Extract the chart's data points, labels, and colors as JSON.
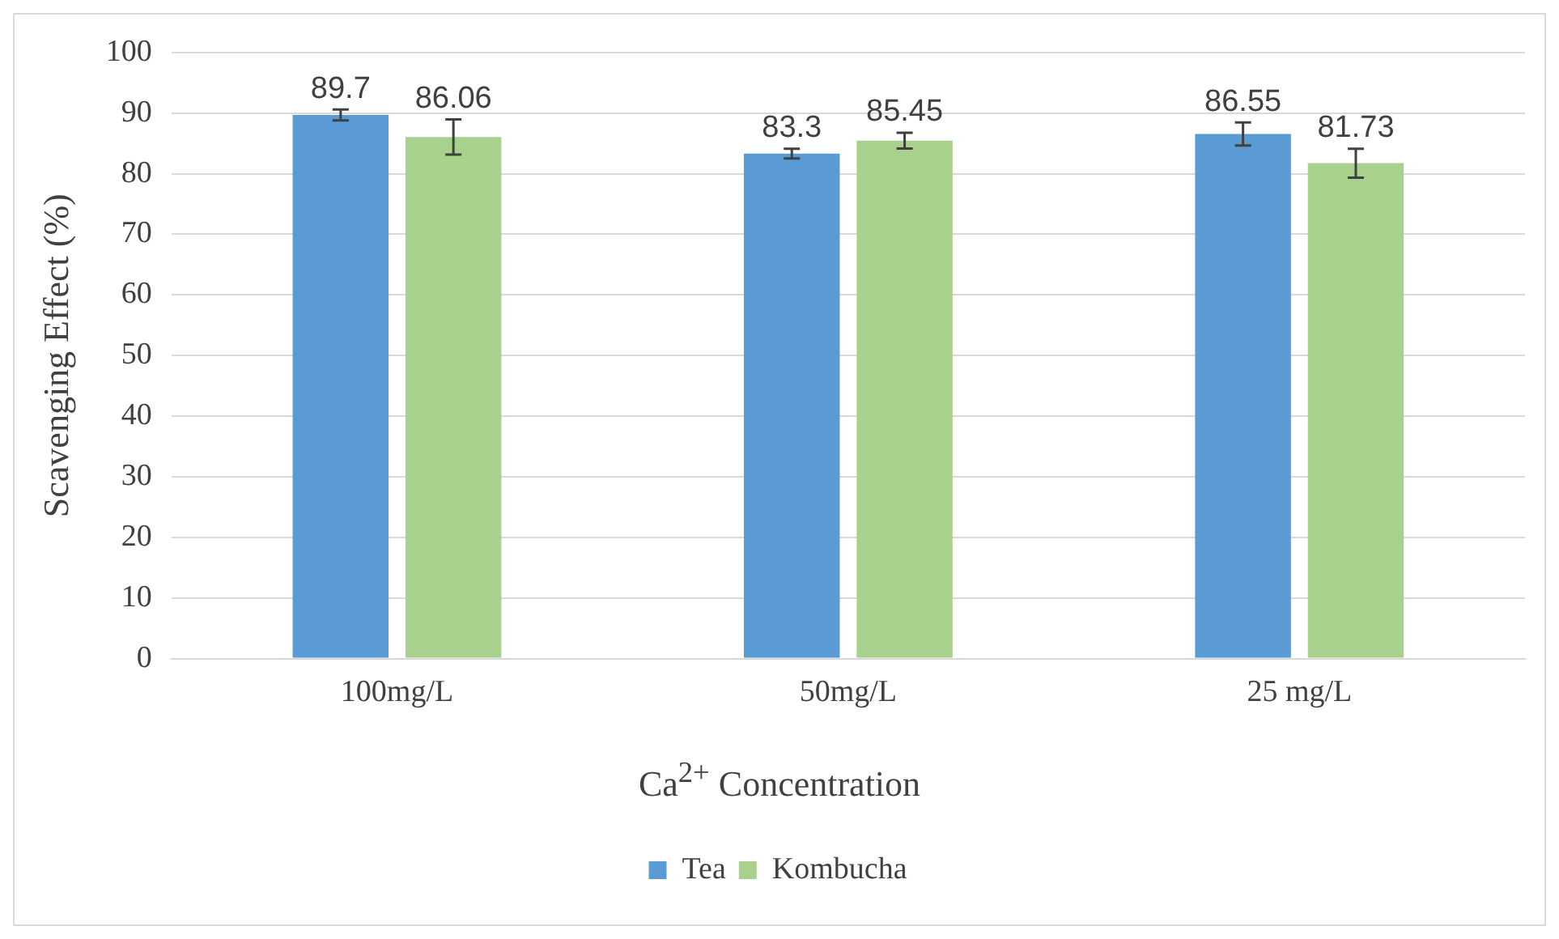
{
  "chart_data": {
    "type": "bar",
    "xlabel": "Ca$^{2+}$ Concentration",
    "ylabel": "Scavenging Effect (%)",
    "categories": [
      "100mg/L",
      "50mg/L",
      "25 mg/L"
    ],
    "series": [
      {
        "name": "Tea",
        "color": "#5b9bd5",
        "values": [
          89.7,
          83.3,
          86.55
        ],
        "errors": [
          0.9,
          0.8,
          1.9
        ]
      },
      {
        "name": "Kombucha",
        "color": "#a9d18e",
        "values": [
          86.06,
          85.45,
          81.73
        ],
        "errors": [
          2.9,
          1.3,
          2.4
        ]
      }
    ],
    "ylim": [
      0,
      100
    ],
    "yticks": [
      0,
      10,
      20,
      30,
      40,
      50,
      60,
      70,
      80,
      90,
      100
    ],
    "grid": "y",
    "legend": "bottom",
    "data_labels": true
  }
}
